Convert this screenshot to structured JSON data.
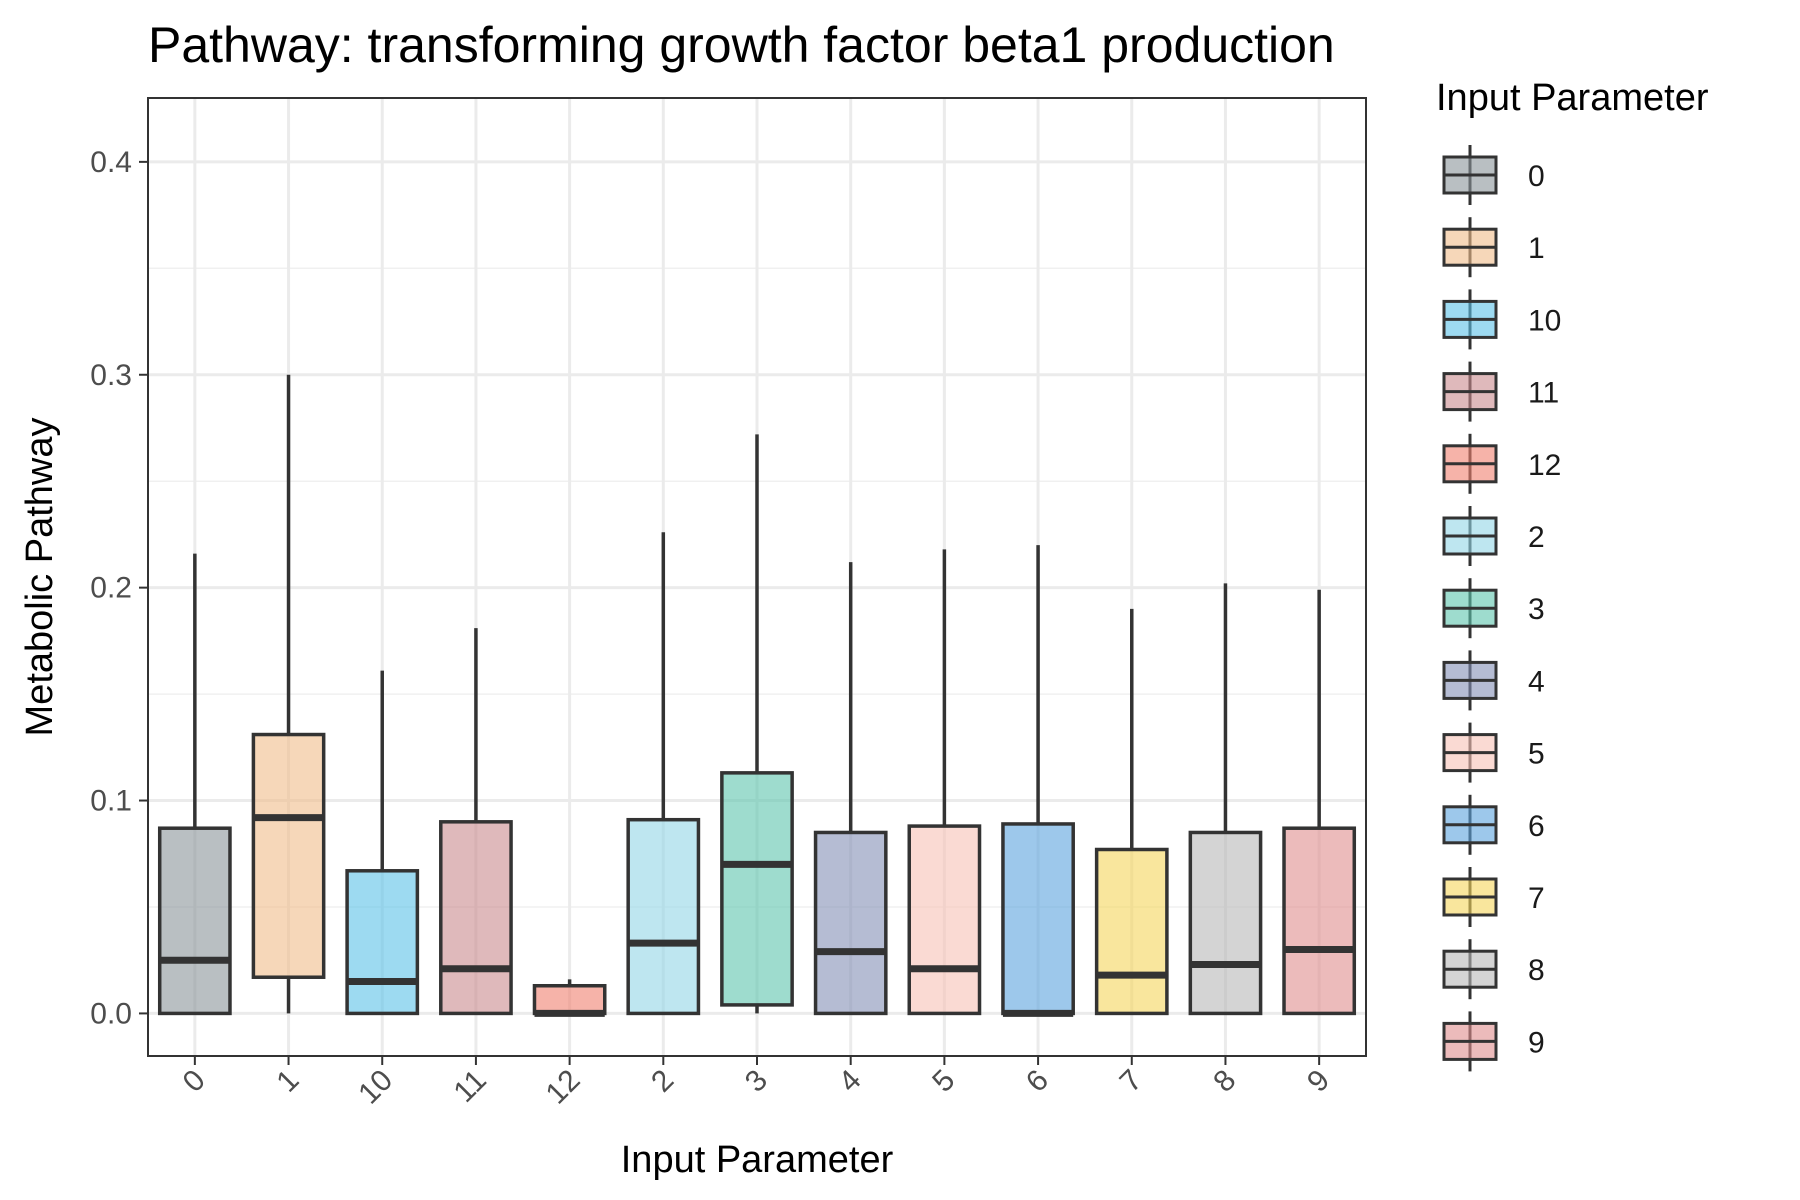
{
  "chart_data": {
    "type": "box",
    "title": "Pathway: transforming growth factor beta1 production",
    "xlabel": "Input Parameter",
    "ylabel": "Metabolic Pathway",
    "ylim": [
      -0.02,
      0.43
    ],
    "yticks": [
      0.0,
      0.1,
      0.2,
      0.3,
      0.4
    ],
    "ytick_labels": [
      "0.0",
      "0.1",
      "0.2",
      "0.3",
      "0.4"
    ],
    "grid": true,
    "legend": {
      "title": "Input Parameter",
      "position": "right"
    },
    "categories": [
      "0",
      "1",
      "10",
      "11",
      "12",
      "2",
      "3",
      "4",
      "5",
      "6",
      "7",
      "8",
      "9"
    ],
    "series": [
      {
        "name": "0",
        "color": "#8a9499",
        "min": 0.0,
        "q1": 0.0,
        "median": 0.025,
        "q3": 0.087,
        "max": 0.216
      },
      {
        "name": "1",
        "color": "#f0bc8a",
        "min": 0.0,
        "q1": 0.017,
        "median": 0.092,
        "q3": 0.131,
        "max": 0.3
      },
      {
        "name": "10",
        "color": "#5cc2e8",
        "min": 0.0,
        "q1": 0.0,
        "median": 0.015,
        "q3": 0.067,
        "max": 0.161
      },
      {
        "name": "11",
        "color": "#c98a8e",
        "min": 0.0,
        "q1": 0.0,
        "median": 0.021,
        "q3": 0.09,
        "max": 0.181
      },
      {
        "name": "12",
        "color": "#f0806f",
        "min": 0.0,
        "q1": 0.0,
        "median": 0.0,
        "q3": 0.013,
        "max": 0.016
      },
      {
        "name": "2",
        "color": "#92d5e6",
        "min": 0.0,
        "q1": 0.0,
        "median": 0.033,
        "q3": 0.091,
        "max": 0.226
      },
      {
        "name": "3",
        "color": "#5ec4ad",
        "min": 0.0,
        "q1": 0.004,
        "median": 0.07,
        "q3": 0.113,
        "max": 0.272
      },
      {
        "name": "4",
        "color": "#8490b5",
        "min": 0.0,
        "q1": 0.0,
        "median": 0.029,
        "q3": 0.085,
        "max": 0.212
      },
      {
        "name": "5",
        "color": "#f7c2b6",
        "min": 0.0,
        "q1": 0.0,
        "median": 0.021,
        "q3": 0.088,
        "max": 0.218
      },
      {
        "name": "6",
        "color": "#5ca3de",
        "min": 0.0,
        "q1": 0.0,
        "median": 0.0,
        "q3": 0.089,
        "max": 0.22
      },
      {
        "name": "7",
        "color": "#f5d55c",
        "min": 0.0,
        "q1": 0.0,
        "median": 0.018,
        "q3": 0.077,
        "max": 0.19
      },
      {
        "name": "8",
        "color": "#b8b8b8",
        "min": 0.0,
        "q1": 0.0,
        "median": 0.023,
        "q3": 0.085,
        "max": 0.202
      },
      {
        "name": "9",
        "color": "#e08e8e",
        "min": 0.0,
        "q1": 0.0,
        "median": 0.03,
        "q3": 0.087,
        "max": 0.199
      }
    ]
  }
}
